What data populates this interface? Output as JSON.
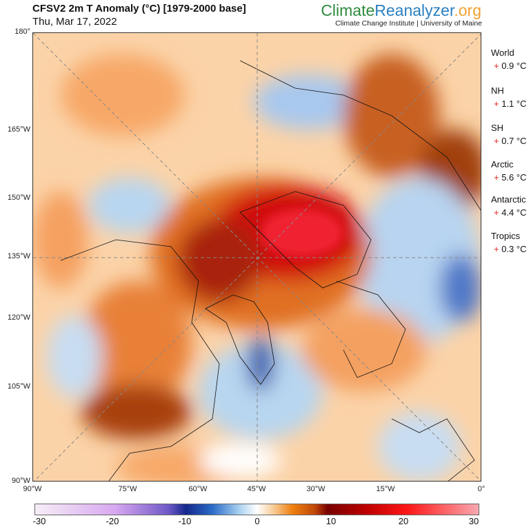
{
  "header": {
    "title": "CFSV2 2m T Anomaly (°C) [1979-2000 base]",
    "date": "Thu, Mar 17, 2022",
    "brand": {
      "part1": "Climate",
      "part2": "Reanalyzer",
      ".org": ".org"
    },
    "institution": "Climate Change Institute | University of Maine"
  },
  "map": {
    "left_ticks": [
      "180°",
      "165°W",
      "150°W",
      "135°W",
      "120°W",
      "105°W",
      "90°W"
    ],
    "bottom_ticks": [
      "90°W",
      "75°W",
      "60°W",
      "45°W",
      "30°W",
      "15°W",
      "0°"
    ]
  },
  "stats": [
    {
      "label": "World",
      "sign": "+",
      "value": "0.9 °C"
    },
    {
      "label": "NH",
      "sign": "+",
      "value": "1.1 °C"
    },
    {
      "label": "SH",
      "sign": "+",
      "value": "0.7 °C"
    },
    {
      "label": "Arctic",
      "sign": "+",
      "value": "5.6 °C"
    },
    {
      "label": "Antarctic",
      "sign": "+",
      "value": "4.4 °C"
    },
    {
      "label": "Tropics",
      "sign": "+",
      "value": "0.3 °C"
    }
  ],
  "colorbar": {
    "labels": [
      "-30",
      "-20",
      "-10",
      "0",
      "10",
      "20",
      "30"
    ],
    "min": -30,
    "max": 30
  }
}
